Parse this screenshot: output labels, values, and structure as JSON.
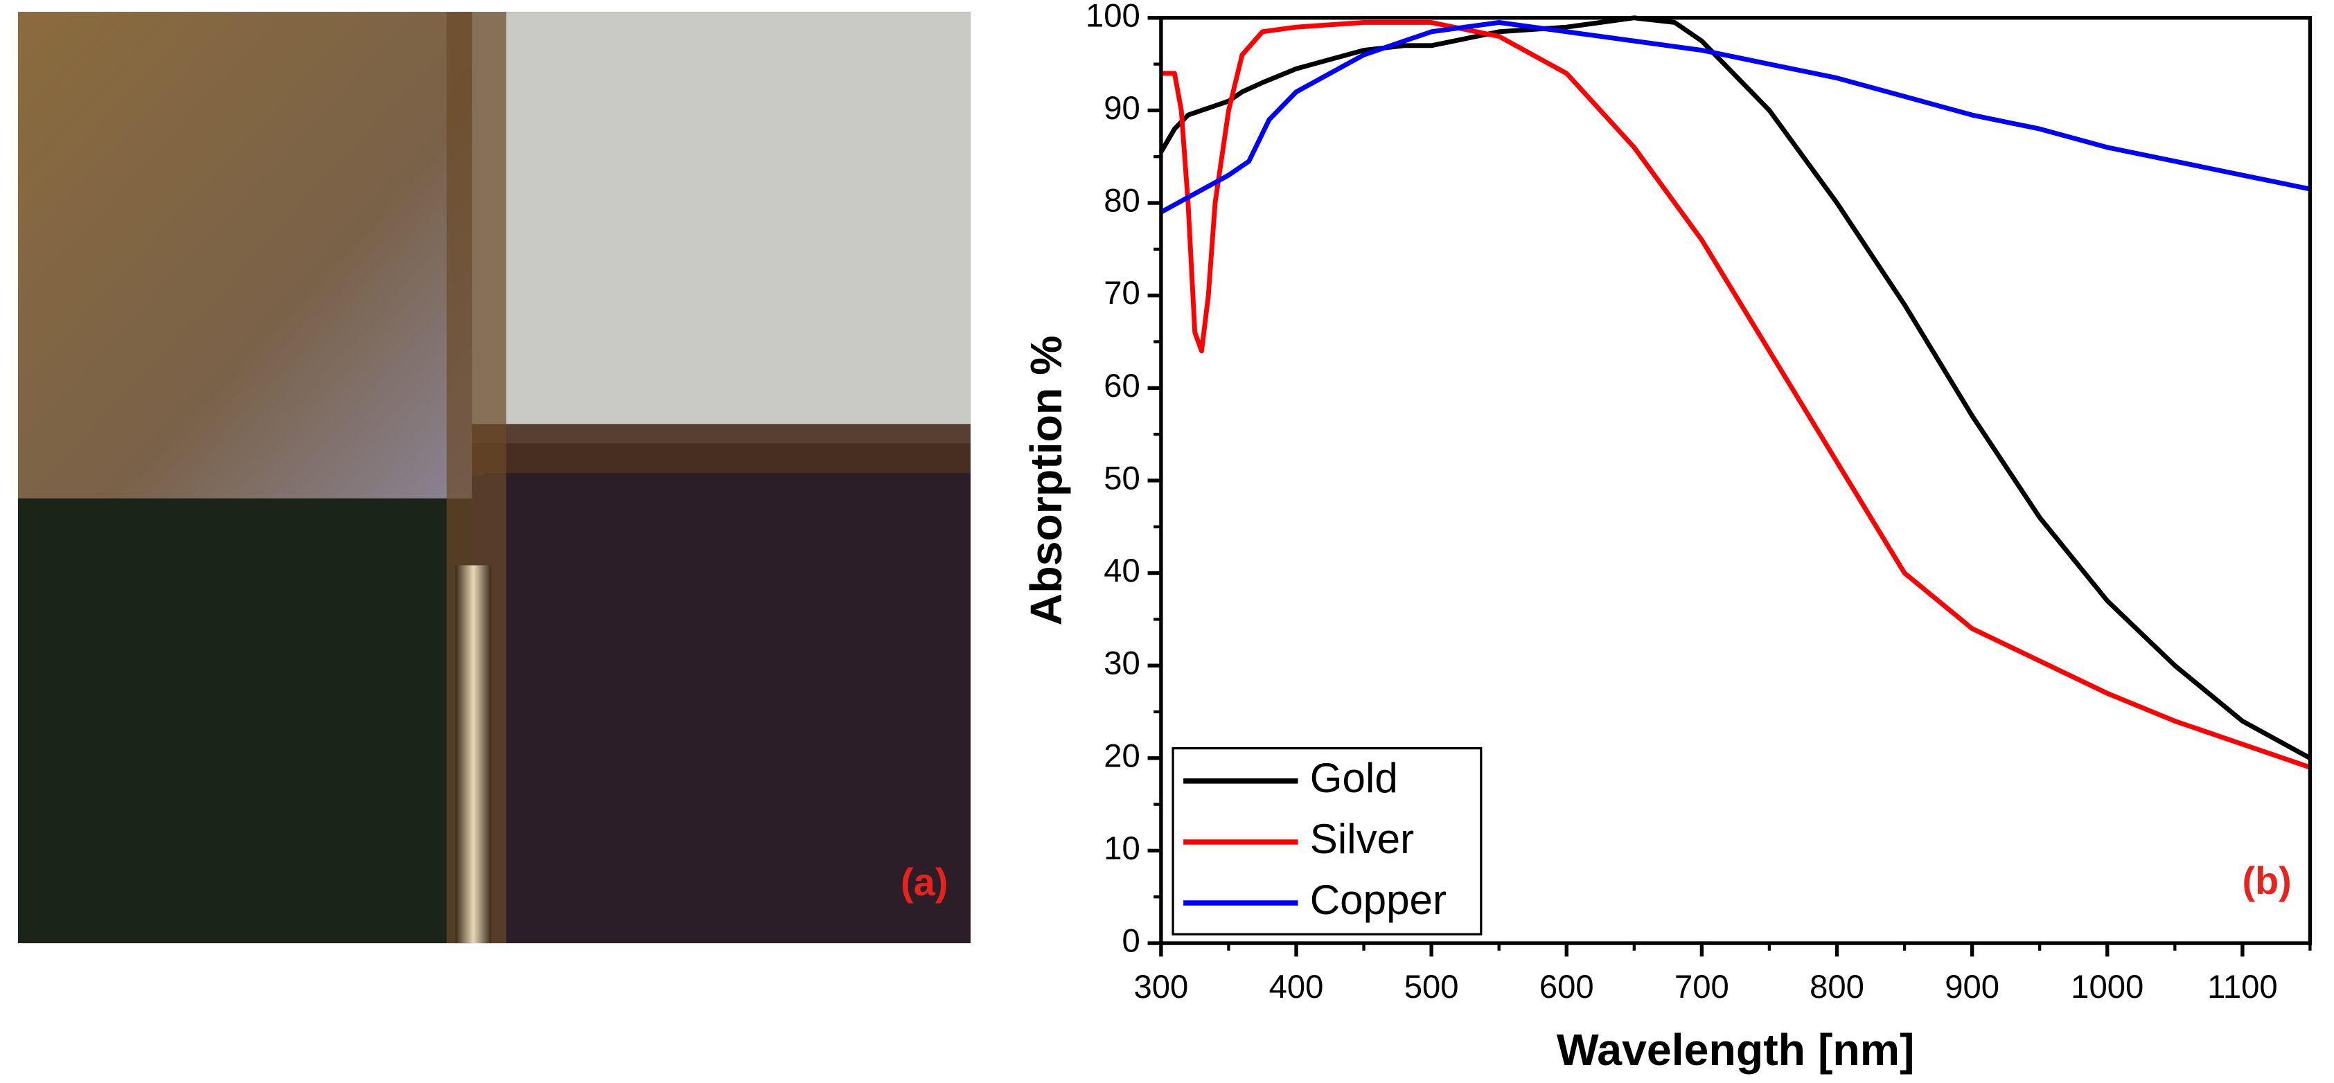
{
  "panel_a": {
    "label": "(a)"
  },
  "chart_data": {
    "type": "line",
    "panel_label": "(b)",
    "x_label": "Wavelength [nm]",
    "y_label": "Absorption %",
    "xlim": [
      300,
      1150
    ],
    "xticks": [
      300,
      400,
      500,
      600,
      700,
      800,
      900,
      1000,
      1100
    ],
    "ylim": [
      0,
      100
    ],
    "yticks": [
      0,
      10,
      20,
      30,
      40,
      50,
      60,
      70,
      80,
      90,
      100
    ],
    "legend": "lower left",
    "series": [
      {
        "name": "Gold",
        "color": "#000000",
        "x": [
          300,
          310,
          320,
          330,
          340,
          350,
          360,
          375,
          400,
          450,
          480,
          500,
          550,
          600,
          650,
          680,
          700,
          750,
          800,
          850,
          900,
          950,
          1000,
          1050,
          1100,
          1150
        ],
        "values": [
          85.5,
          88,
          89.5,
          90,
          90.5,
          91,
          92,
          93,
          94.5,
          96.5,
          97,
          97,
          98.5,
          99,
          100,
          99.5,
          97.5,
          90,
          80,
          69,
          57,
          46,
          37,
          30,
          24,
          20
        ]
      },
      {
        "name": "Silver",
        "color": "#ff0000",
        "x": [
          300,
          310,
          315,
          320,
          325,
          330,
          335,
          340,
          350,
          360,
          375,
          400,
          450,
          500,
          550,
          600,
          650,
          700,
          750,
          800,
          850,
          900,
          950,
          1000,
          1050,
          1100,
          1150
        ],
        "values": [
          94,
          94,
          90,
          80,
          66,
          64,
          70,
          80,
          90,
          96,
          98.5,
          99,
          99.5,
          99.5,
          98,
          94,
          86,
          76,
          64,
          52,
          40,
          34,
          30.5,
          27,
          24,
          21.5,
          19
        ]
      },
      {
        "name": "Copper",
        "color": "#0000ff",
        "x": [
          300,
          325,
          350,
          365,
          380,
          400,
          450,
          500,
          550,
          600,
          650,
          700,
          750,
          800,
          850,
          900,
          950,
          1000,
          1050,
          1100,
          1150
        ],
        "values": [
          79,
          81,
          83,
          84.5,
          89,
          92,
          96,
          98.5,
          99.5,
          98.5,
          97.5,
          96.5,
          95,
          93.5,
          91.5,
          89.5,
          88,
          86,
          84.5,
          83,
          81.5
        ]
      }
    ]
  }
}
